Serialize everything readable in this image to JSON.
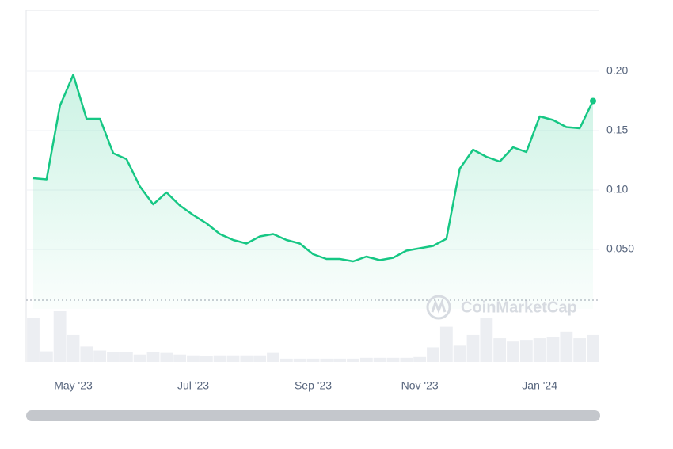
{
  "chart_data": {
    "type": "line",
    "categories": [
      null,
      null,
      null,
      "May '23",
      null,
      null,
      null,
      null,
      null,
      null,
      null,
      null,
      "Jul '23",
      null,
      null,
      null,
      null,
      null,
      null,
      null,
      null,
      "Sep '23",
      null,
      null,
      null,
      null,
      null,
      null,
      null,
      "Nov '23",
      null,
      null,
      null,
      null,
      null,
      null,
      null,
      null,
      "Jan '24",
      null,
      null,
      null,
      null
    ],
    "values": [
      0.11,
      0.109,
      0.171,
      0.197,
      0.16,
      0.16,
      0.131,
      0.126,
      0.103,
      0.088,
      0.098,
      0.087,
      0.079,
      0.072,
      0.063,
      0.058,
      0.055,
      0.061,
      0.063,
      0.058,
      0.055,
      0.046,
      0.042,
      0.042,
      0.04,
      0.044,
      0.041,
      0.043,
      0.049,
      0.051,
      0.053,
      0.059,
      0.118,
      0.134,
      0.128,
      0.124,
      0.136,
      0.132,
      0.162,
      0.159,
      0.153,
      0.152,
      0.175
    ],
    "color": "#16c784",
    "volume": {
      "values": [
        54,
        13,
        62,
        33,
        19,
        14,
        12,
        12,
        9,
        12,
        11,
        9,
        8,
        7,
        8,
        8,
        8,
        8,
        11,
        4,
        4,
        4,
        4,
        4,
        4,
        5,
        5,
        5,
        5,
        6,
        18,
        43,
        20,
        33,
        54,
        29,
        25,
        27,
        29,
        30,
        37,
        29,
        33
      ],
      "color": "#eceef2"
    },
    "ylim": [
      0,
      0.25
    ],
    "yticks": [
      {
        "value": 0.05,
        "label": "0.050"
      },
      {
        "value": 0.1,
        "label": "0.10"
      },
      0.15,
      {
        "value": 0.2,
        "label": "0.20"
      }
    ],
    "grid": true,
    "watermark": "CoinMarketCap"
  }
}
